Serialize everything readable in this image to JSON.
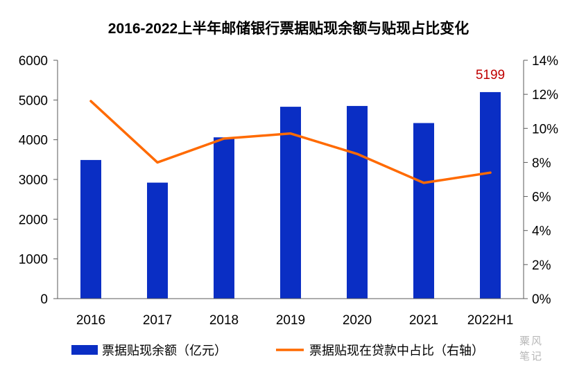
{
  "chart_data": {
    "type": "bar",
    "title": "2016-2022上半年邮储银行票据贴现余额与贴现占比变化",
    "categories": [
      "2016",
      "2017",
      "2018",
      "2019",
      "2020",
      "2021",
      "2022H1"
    ],
    "series": [
      {
        "name": "票据贴现余额（亿元）",
        "type": "bar",
        "axis": "left",
        "color": "#0a2ec4",
        "values": [
          3490,
          2920,
          4060,
          4830,
          4850,
          4420,
          5199
        ]
      },
      {
        "name": "票据贴现在贷款中占比（右轴）",
        "type": "line",
        "axis": "right",
        "color": "#ff6a00",
        "values": [
          11.6,
          8.0,
          9.4,
          9.7,
          8.5,
          6.8,
          7.4
        ]
      }
    ],
    "left_axis": {
      "min": 0,
      "max": 6000,
      "ticks": [
        "0",
        "1000",
        "2000",
        "3000",
        "4000",
        "5000",
        "6000"
      ]
    },
    "right_axis": {
      "min": 0,
      "max": 14,
      "ticks": [
        "0%",
        "2%",
        "4%",
        "6%",
        "8%",
        "10%",
        "12%",
        "14%"
      ]
    },
    "annotation": {
      "category": "2022H1",
      "text": "5199",
      "color": "#c00000"
    },
    "grid": false,
    "legend_position": "bottom"
  },
  "watermark": {
    "line1": "粟风",
    "line2": "笔记"
  }
}
